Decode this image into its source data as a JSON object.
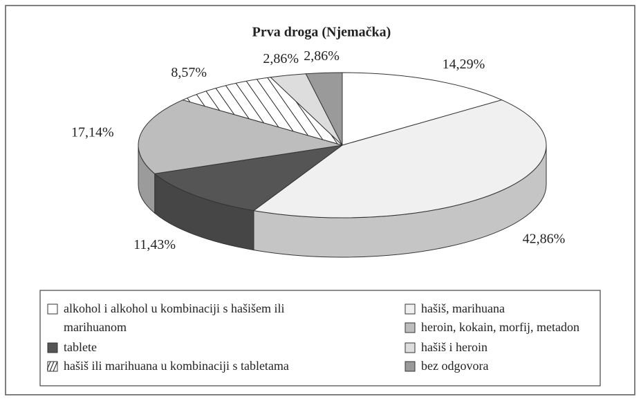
{
  "chart_data": {
    "type": "pie3d",
    "title": "Prva droga (Njemačka)",
    "categories": [
      "alkohol i alkohol u kombinaciji s hašišem ili marihuanom",
      "hašiš, marihuana",
      "tablete",
      "heroin, kokain, morfij, metadon",
      "hašiš ili marihuana u kombinaciji s tabletama",
      "hašiš i heroin",
      "bez odgovora"
    ],
    "values": [
      14.29,
      42.86,
      11.43,
      17.14,
      8.57,
      2.86,
      2.86
    ],
    "value_labels": [
      "14,29%",
      "42,86%",
      "11,43%",
      "17,14%",
      "8,57%",
      "2,86%",
      "2,86%"
    ],
    "colors": [
      "#ffffff",
      "#f0f0f0",
      "#555555",
      "#bdbdbd",
      "#ffffff",
      "#dddddd",
      "#9a9a9a"
    ],
    "hatched": [
      false,
      false,
      false,
      false,
      true,
      false,
      false
    ]
  }
}
